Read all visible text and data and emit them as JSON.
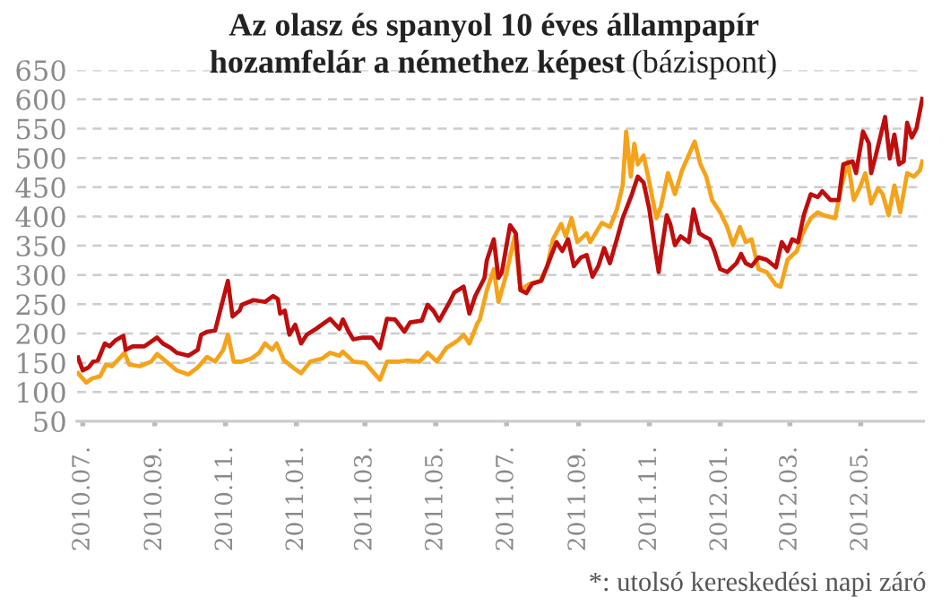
{
  "chart_data": {
    "type": "line",
    "title": "Az olasz és spanyol 10 éves állampapír\nhozamfelár a némethez képest",
    "subtitle": "(bázispont)",
    "annotations": [
      "*: utolsó kereskedési napi záró"
    ],
    "xlim": [
      "2010-06-26",
      "2012-06-24"
    ],
    "xticks": [
      {
        "value": "2010-07-01",
        "label": "2010.07."
      },
      {
        "value": "2010-09-01",
        "label": "2010.09."
      },
      {
        "value": "2010-11-01",
        "label": "2010.11."
      },
      {
        "value": "2011-01-01",
        "label": "2011.01."
      },
      {
        "value": "2011-03-01",
        "label": "2011.03."
      },
      {
        "value": "2011-05-01",
        "label": "2011.05."
      },
      {
        "value": "2011-07-01",
        "label": "2011.07."
      },
      {
        "value": "2011-09-01",
        "label": "2011.09."
      },
      {
        "value": "2011-11-01",
        "label": "2011.11."
      },
      {
        "value": "2012-01-01",
        "label": "2012.01."
      },
      {
        "value": "2012-03-01",
        "label": "2012.03."
      },
      {
        "value": "2012-05-01",
        "label": "2012.05."
      }
    ],
    "ylim": [
      50,
      650
    ],
    "yticks": [
      50,
      100,
      150,
      200,
      250,
      300,
      350,
      400,
      450,
      500,
      550,
      600,
      650
    ],
    "grid": "y",
    "legend": false,
    "series": [
      {
        "color": "#f5a31a",
        "x": [
          "2010-06-27",
          "2010-07-04",
          "2010-07-09",
          "2010-07-16",
          "2010-07-21",
          "2010-07-26",
          "2010-08-06",
          "2010-08-10",
          "2010-08-19",
          "2010-08-29",
          "2010-09-03",
          "2010-09-11",
          "2010-09-20",
          "2010-09-30",
          "2010-10-08",
          "2010-10-16",
          "2010-10-23",
          "2010-10-30",
          "2010-11-03",
          "2010-11-08",
          "2010-11-15",
          "2010-11-23",
          "2010-11-30",
          "2010-12-05",
          "2010-12-11",
          "2010-12-15",
          "2010-12-21",
          "2010-12-29",
          "2011-01-05",
          "2011-01-13",
          "2011-01-23",
          "2011-01-30",
          "2011-02-07",
          "2011-02-10",
          "2011-02-19",
          "2011-03-01",
          "2011-03-14",
          "2011-03-20",
          "2011-03-30",
          "2011-04-07",
          "2011-04-17",
          "2011-04-24",
          "2011-05-02",
          "2011-05-10",
          "2011-05-20",
          "2011-05-25",
          "2011-05-30",
          "2011-06-06",
          "2011-06-08",
          "2011-06-14",
          "2011-06-20",
          "2011-06-24",
          "2011-06-30",
          "2011-07-08",
          "2011-07-13",
          "2011-07-21",
          "2011-07-30",
          "2011-08-05",
          "2011-08-10",
          "2011-08-17",
          "2011-08-21",
          "2011-08-26",
          "2011-08-31",
          "2011-09-08",
          "2011-09-11",
          "2011-09-21",
          "2011-09-28",
          "2011-10-04",
          "2011-10-09",
          "2011-10-12",
          "2011-10-16",
          "2011-10-19",
          "2011-10-22",
          "2011-10-27",
          "2011-11-01",
          "2011-11-07",
          "2011-11-11",
          "2011-11-17",
          "2011-11-23",
          "2011-11-29",
          "2011-12-10",
          "2011-12-15",
          "2011-12-20",
          "2011-12-25",
          "2012-01-01",
          "2012-01-07",
          "2012-01-12",
          "2012-01-18",
          "2012-01-23",
          "2012-01-28",
          "2012-02-03",
          "2012-02-10",
          "2012-02-18",
          "2012-02-22",
          "2012-02-28",
          "2012-03-07",
          "2012-03-12",
          "2012-03-19",
          "2012-03-25",
          "2012-03-30",
          "2012-04-09",
          "2012-04-14",
          "2012-04-20",
          "2012-04-25",
          "2012-04-30",
          "2012-05-05",
          "2012-05-10",
          "2012-05-16",
          "2012-05-20",
          "2012-05-25",
          "2012-05-30",
          "2012-06-04",
          "2012-06-10",
          "2012-06-16",
          "2012-06-21",
          "2012-06-23"
        ],
        "values": [
          132,
          116,
          123,
          127,
          147,
          144,
          167,
          147,
          144,
          152,
          165,
          152,
          137,
          130,
          142,
          160,
          152,
          172,
          198,
          152,
          152,
          157,
          167,
          183,
          172,
          183,
          155,
          142,
          132,
          152,
          157,
          167,
          162,
          169,
          152,
          150,
          121,
          152,
          152,
          154,
          152,
          167,
          152,
          175,
          188,
          198,
          183,
          218,
          224,
          274,
          310,
          254,
          295,
          366,
          274,
          285,
          290,
          315,
          361,
          387,
          366,
          397,
          356,
          371,
          356,
          389,
          382,
          412,
          453,
          545,
          468,
          524,
          489,
          504,
          458,
          397,
          417,
          474,
          438,
          478,
          528,
          489,
          468,
          428,
          407,
          382,
          351,
          382,
          356,
          361,
          310,
          305,
          283,
          280,
          326,
          341,
          371,
          397,
          407,
          402,
          397,
          448,
          494,
          428,
          448,
          474,
          422,
          448,
          438,
          402,
          453,
          407,
          474,
          468,
          479,
          494
        ]
      },
      {
        "color": "#c00d0d",
        "x": [
          "2010-06-27",
          "2010-07-01",
          "2010-07-06",
          "2010-07-10",
          "2010-07-14",
          "2010-07-20",
          "2010-07-24",
          "2010-07-29",
          "2010-08-05",
          "2010-08-07",
          "2010-08-13",
          "2010-08-23",
          "2010-09-03",
          "2010-09-08",
          "2010-09-15",
          "2010-09-20",
          "2010-09-30",
          "2010-10-08",
          "2010-10-11",
          "2010-10-16",
          "2010-10-23",
          "2010-10-28",
          "2010-11-03",
          "2010-11-07",
          "2010-11-13",
          "2010-11-15",
          "2010-11-25",
          "2010-12-05",
          "2010-12-12",
          "2010-12-16",
          "2010-12-18",
          "2010-12-22",
          "2010-12-26",
          "2010-12-31",
          "2011-01-05",
          "2011-01-10",
          "2011-01-18",
          "2011-01-30",
          "2011-02-07",
          "2011-02-10",
          "2011-02-15",
          "2011-02-19",
          "2011-02-27",
          "2011-03-07",
          "2011-03-14",
          "2011-03-20",
          "2011-03-27",
          "2011-04-04",
          "2011-04-09",
          "2011-04-19",
          "2011-04-24",
          "2011-04-29",
          "2011-05-04",
          "2011-05-13",
          "2011-05-17",
          "2011-05-25",
          "2011-05-30",
          "2011-06-04",
          "2011-06-12",
          "2011-06-14",
          "2011-06-20",
          "2011-06-24",
          "2011-06-27",
          "2011-07-04",
          "2011-07-09",
          "2011-07-13",
          "2011-07-18",
          "2011-07-23",
          "2011-07-31",
          "2011-08-05",
          "2011-08-09",
          "2011-08-13",
          "2011-08-18",
          "2011-08-23",
          "2011-08-28",
          "2011-09-03",
          "2011-09-08",
          "2011-09-13",
          "2011-09-18",
          "2011-09-23",
          "2011-09-28",
          "2011-10-04",
          "2011-10-09",
          "2011-10-17",
          "2011-10-22",
          "2011-10-27",
          "2011-11-01",
          "2011-11-05",
          "2011-11-09",
          "2011-11-11",
          "2011-11-16",
          "2011-11-19",
          "2011-11-23",
          "2011-11-28",
          "2011-12-05",
          "2011-12-09",
          "2011-12-14",
          "2011-12-18",
          "2011-12-23",
          "2011-12-27",
          "2012-01-01",
          "2012-01-07",
          "2012-01-15",
          "2012-01-19",
          "2012-01-23",
          "2012-01-28",
          "2012-02-03",
          "2012-02-10",
          "2012-02-18",
          "2012-02-23",
          "2012-02-28",
          "2012-03-03",
          "2012-03-08",
          "2012-03-13",
          "2012-03-19",
          "2012-03-25",
          "2012-03-29",
          "2012-04-05",
          "2012-04-12",
          "2012-04-16",
          "2012-04-24",
          "2012-04-27",
          "2012-05-03",
          "2012-05-08",
          "2012-05-10",
          "2012-05-14",
          "2012-05-22",
          "2012-05-26",
          "2012-05-30",
          "2012-06-03",
          "2012-06-07",
          "2012-06-10",
          "2012-06-14",
          "2012-06-18",
          "2012-06-23"
        ],
        "values": [
          159,
          137,
          142,
          152,
          154,
          183,
          178,
          188,
          196,
          172,
          178,
          178,
          193,
          183,
          175,
          167,
          162,
          172,
          198,
          203,
          205,
          244,
          290,
          229,
          239,
          249,
          257,
          254,
          264,
          259,
          234,
          239,
          198,
          215,
          183,
          198,
          208,
          225,
          208,
          224,
          203,
          190,
          193,
          193,
          175,
          225,
          224,
          203,
          219,
          222,
          249,
          239,
          222,
          254,
          270,
          280,
          234,
          264,
          295,
          325,
          361,
          295,
          305,
          385,
          371,
          274,
          269,
          285,
          290,
          315,
          336,
          356,
          341,
          361,
          315,
          330,
          334,
          297,
          315,
          346,
          320,
          361,
          397,
          438,
          468,
          458,
          412,
          356,
          305,
          336,
          402,
          387,
          351,
          366,
          356,
          412,
          371,
          366,
          361,
          341,
          310,
          305,
          320,
          336,
          320,
          315,
          330,
          326,
          313,
          356,
          341,
          361,
          356,
          402,
          438,
          433,
          443,
          428,
          428,
          489,
          494,
          474,
          545,
          525,
          474,
          504,
          570,
          499,
          540,
          489,
          494,
          560,
          535,
          550,
          601
        ]
      }
    ]
  }
}
